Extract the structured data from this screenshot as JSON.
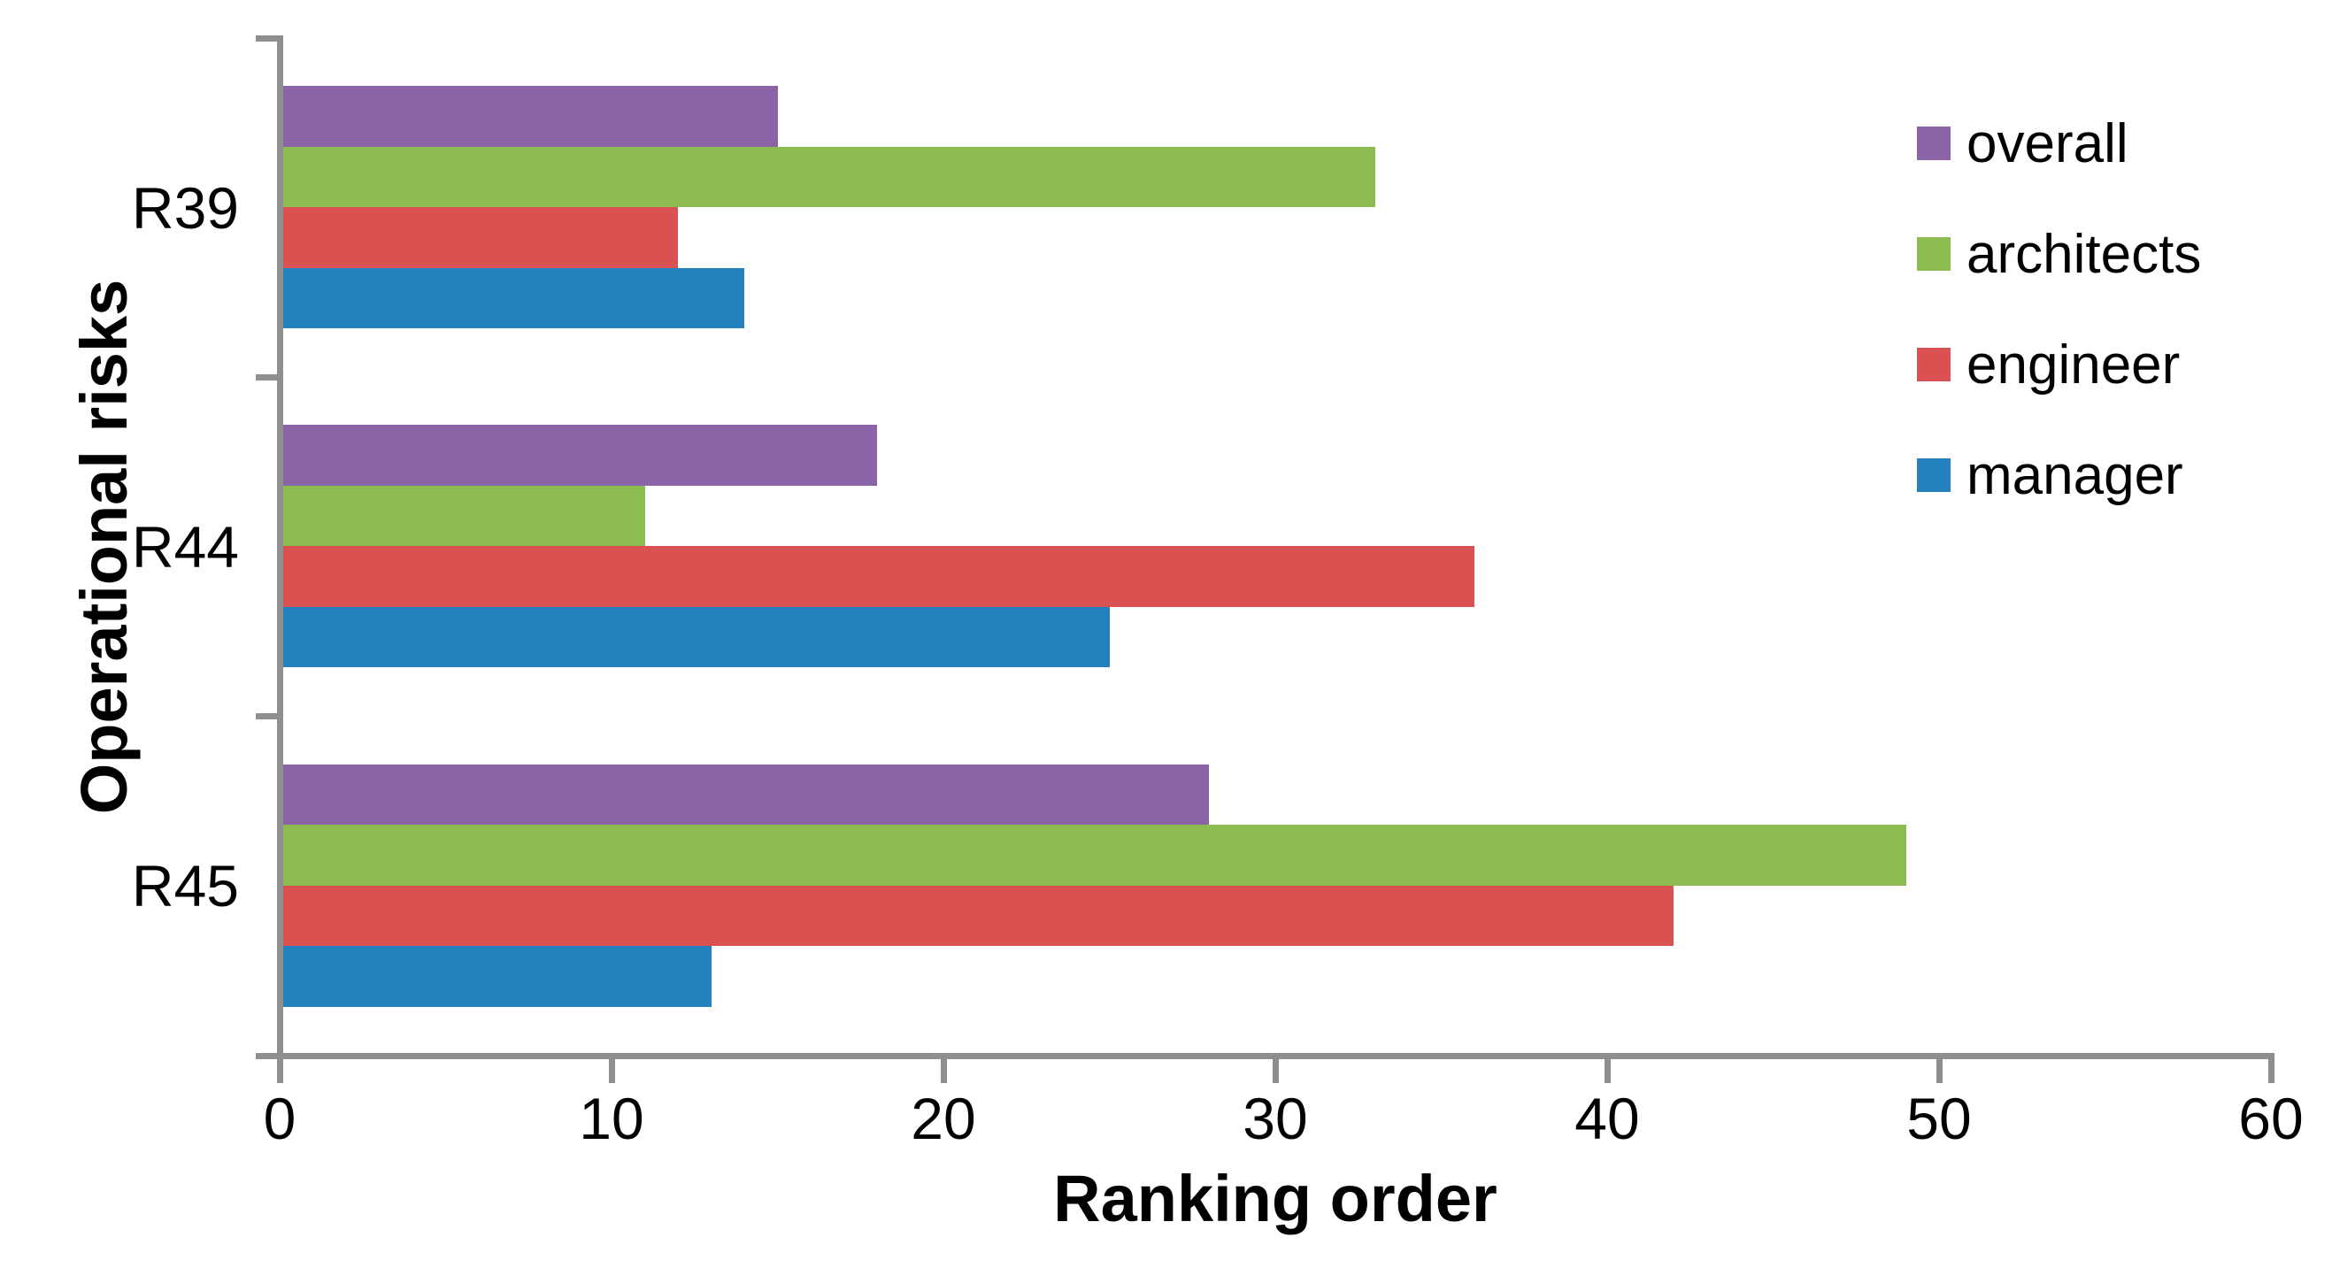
{
  "chart_data": {
    "type": "bar",
    "orientation": "horizontal",
    "title": "",
    "xlabel": "Ranking order",
    "ylabel": "Operational risks",
    "categories": [
      "R39",
      "R44",
      "R45"
    ],
    "series": [
      {
        "name": "overall",
        "color": "#8A64A6",
        "values": [
          15,
          18,
          28
        ]
      },
      {
        "name": "architects",
        "color": "#8CBC50",
        "values": [
          33,
          11,
          49
        ]
      },
      {
        "name": "engineer",
        "color": "#D95150",
        "values": [
          12,
          36,
          42
        ]
      },
      {
        "name": "manager",
        "color": "#2581BE",
        "values": [
          14,
          25,
          13
        ]
      }
    ],
    "xlim": [
      0,
      60
    ],
    "xticks": [
      0,
      10,
      20,
      30,
      40,
      50,
      60
    ],
    "grid": false,
    "legend_position": "upper right",
    "axis_color": "#8E8E8E",
    "text_color": "#000000",
    "background_color": "#FFFFFF"
  }
}
